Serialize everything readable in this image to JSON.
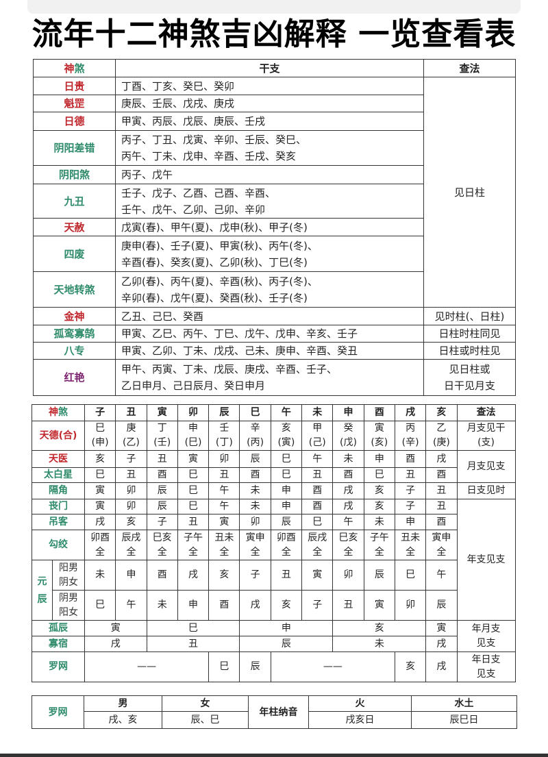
{
  "title": "流年十二神煞吉凶解释 一览查看表",
  "colors": {
    "red": "#c0272d",
    "green": "#2e8b6a",
    "purple": "#7a1f6e"
  },
  "table1": {
    "header": {
      "shen": "神",
      "sha": "煞",
      "ganzhi": "干支",
      "method": "查法"
    },
    "rows": [
      {
        "name": "日贵",
        "color": "red",
        "lines": [
          "丁酉、丁亥、癸巳、癸卯"
        ]
      },
      {
        "name": "魁罡",
        "color": "red",
        "lines": [
          "庚辰、壬辰、戊戌、庚戌"
        ]
      },
      {
        "name": "日德",
        "color": "red",
        "lines": [
          "甲寅、丙辰、戊辰、庚辰、壬戌"
        ]
      },
      {
        "name": "阴阳差错",
        "color": "green",
        "lines": [
          "丙子、丁丑、戊寅、辛卯、壬辰、癸巳、",
          "丙午、丁未、戊申、辛酉、壬戌、癸亥"
        ]
      },
      {
        "name": "阴阳煞",
        "color": "green",
        "lines": [
          "丙子、戊午"
        ]
      },
      {
        "name": "九丑",
        "color": "green",
        "lines": [
          "壬子、戊子、乙酉、己酉、辛酉、",
          "壬午、戊午、乙卯、己卯、辛卯"
        ]
      },
      {
        "name": "天赦",
        "color": "red",
        "lines": [
          "戊寅(春)、甲午(夏)、戊申(秋)、甲子(冬)"
        ]
      },
      {
        "name": "四废",
        "color": "green",
        "lines": [
          "庚申(春)、壬子(夏)、甲寅(秋)、丙午(冬)、",
          "辛酉(春)、癸亥(夏)、乙卯(秋)、丁巳(冬)"
        ]
      },
      {
        "name": "天地转煞",
        "color": "green",
        "lines": [
          "乙卯(春)、丙午(夏)、辛酉(秋)、丙子(冬)、",
          "辛卯(春)、戊午(夏)、癸酉(秋)、壬子(冬)"
        ]
      },
      {
        "name": "金神",
        "color": "red",
        "lines": [
          "乙丑、己巳、癸酉"
        ]
      },
      {
        "name": "孤鸾寡鹄",
        "color": "green",
        "lines": [
          "甲寅、乙巳、丙午、丁巳、戊午、戊申、辛亥、壬子"
        ]
      },
      {
        "name": "八专",
        "color": "green",
        "lines": [
          "甲寅、乙卯、丁未、戊戌、己未、庚申、辛酉、癸丑"
        ]
      },
      {
        "name": "红艳",
        "color": "purple",
        "lines": [
          "甲午、丙寅、丁未、戊辰、庚戌、辛酉、壬子、",
          "乙日申月、己日辰月、癸日申月"
        ]
      }
    ],
    "methods": [
      {
        "lines": [
          "见日柱"
        ]
      },
      {
        "lines": [
          "见时柱(、日柱)"
        ]
      },
      {
        "lines": [
          "日柱时柱同见"
        ]
      },
      {
        "lines": [
          "日柱或时柱见"
        ]
      },
      {
        "lines": [
          "见日柱或",
          "日干见月支"
        ]
      }
    ]
  },
  "table2": {
    "header": {
      "shen": "神",
      "sha": "煞",
      "branches": [
        "子",
        "丑",
        "寅",
        "卯",
        "辰",
        "巳",
        "午",
        "未",
        "申",
        "酉",
        "戌",
        "亥"
      ],
      "method": "查法"
    },
    "rows": [
      {
        "name": "天德(合)",
        "color": "red",
        "cells": [
          [
            "巳",
            "(申)"
          ],
          [
            "庚",
            "(乙)"
          ],
          [
            "丁",
            "(壬)"
          ],
          [
            "申",
            "(巳)"
          ],
          [
            "壬",
            "(丁)"
          ],
          [
            "辛",
            "(丙)"
          ],
          [
            "亥",
            "(寅)"
          ],
          [
            "甲",
            "(己)"
          ],
          [
            "癸",
            "(戊)"
          ],
          [
            "寅",
            "(亥)"
          ],
          [
            "丙",
            "(辛)"
          ],
          [
            "乙",
            "(庚)"
          ]
        ]
      },
      {
        "name": "天医",
        "color": "red",
        "cells": [
          [
            "亥"
          ],
          [
            "子"
          ],
          [
            "丑"
          ],
          [
            "寅"
          ],
          [
            "卯"
          ],
          [
            "辰"
          ],
          [
            "巳"
          ],
          [
            "午"
          ],
          [
            "未"
          ],
          [
            "申"
          ],
          [
            "酉"
          ],
          [
            "戌"
          ]
        ]
      },
      {
        "name": "太白星",
        "color": "green",
        "cells": [
          [
            "巳"
          ],
          [
            "丑"
          ],
          [
            "酉"
          ],
          [
            "巳"
          ],
          [
            "丑"
          ],
          [
            "酉"
          ],
          [
            "巳"
          ],
          [
            "丑"
          ],
          [
            "酉"
          ],
          [
            "巳"
          ],
          [
            "丑"
          ],
          [
            "酉"
          ]
        ]
      },
      {
        "name": "隔角",
        "color": "green",
        "cells": [
          [
            "寅"
          ],
          [
            "卯"
          ],
          [
            "辰"
          ],
          [
            "巳"
          ],
          [
            "午"
          ],
          [
            "未"
          ],
          [
            "申"
          ],
          [
            "酉"
          ],
          [
            "戌"
          ],
          [
            "亥"
          ],
          [
            "子"
          ],
          [
            "丑"
          ]
        ]
      },
      {
        "name": "丧门",
        "color": "green",
        "cells": [
          [
            "寅"
          ],
          [
            "卯"
          ],
          [
            "辰"
          ],
          [
            "巳"
          ],
          [
            "午"
          ],
          [
            "未"
          ],
          [
            "申"
          ],
          [
            "酉"
          ],
          [
            "戌"
          ],
          [
            "亥"
          ],
          [
            "子"
          ],
          [
            "丑"
          ]
        ]
      },
      {
        "name": "吊客",
        "color": "green",
        "cells": [
          [
            "戌"
          ],
          [
            "亥"
          ],
          [
            "子"
          ],
          [
            "丑"
          ],
          [
            "寅"
          ],
          [
            "卯"
          ],
          [
            "辰"
          ],
          [
            "巳"
          ],
          [
            "午"
          ],
          [
            "未"
          ],
          [
            "申"
          ],
          [
            "酉"
          ]
        ]
      },
      {
        "name": "勾绞",
        "color": "green",
        "cells": [
          [
            "卯酉",
            "全"
          ],
          [
            "辰戌",
            "全"
          ],
          [
            "巳亥",
            "全"
          ],
          [
            "子午",
            "全"
          ],
          [
            "丑未",
            "全"
          ],
          [
            "寅申",
            "全"
          ],
          [
            "卯酉",
            "全"
          ],
          [
            "辰戌",
            "全"
          ],
          [
            "巳亥",
            "全"
          ],
          [
            "子午",
            "全"
          ],
          [
            "丑未",
            "全"
          ],
          [
            "寅申",
            "全"
          ]
        ]
      },
      {
        "name": "元辰",
        "color": "green",
        "sub": [
          "阳男",
          "阴女"
        ],
        "cells": [
          [
            "未"
          ],
          [
            "申"
          ],
          [
            "酉"
          ],
          [
            "戌"
          ],
          [
            "亥"
          ],
          [
            "子"
          ],
          [
            "丑"
          ],
          [
            "寅"
          ],
          [
            "卯"
          ],
          [
            "辰"
          ],
          [
            "巳"
          ],
          [
            "午"
          ]
        ]
      },
      {
        "name": "",
        "color": "green",
        "sub": [
          "阴男",
          "阳女"
        ],
        "cells": [
          [
            "巳"
          ],
          [
            "午"
          ],
          [
            "未"
          ],
          [
            "申"
          ],
          [
            "酉"
          ],
          [
            "戌"
          ],
          [
            "亥"
          ],
          [
            "子"
          ],
          [
            "丑"
          ],
          [
            "寅"
          ],
          [
            "卯"
          ],
          [
            "辰"
          ]
        ]
      },
      {
        "name": "孤辰",
        "color": "green",
        "cells": [
          [
            "寅"
          ],
          [
            "巳"
          ],
          [
            "申"
          ],
          [
            "亥"
          ],
          [
            "寅"
          ]
        ]
      },
      {
        "name": "寡宿",
        "color": "green",
        "cells": [
          [
            "戌"
          ],
          [
            "丑"
          ],
          [
            "辰"
          ],
          [
            "未"
          ],
          [
            "戌"
          ]
        ]
      },
      {
        "name": "罗网",
        "color": "green",
        "cells": [
          [
            "——"
          ],
          [
            "巳"
          ],
          [
            "辰"
          ],
          [
            "——"
          ],
          [
            "亥"
          ],
          [
            "戌"
          ]
        ]
      }
    ],
    "methods": [
      {
        "lines": [
          "月支见干",
          "(支)"
        ]
      },
      {
        "lines": [
          "月支见支"
        ]
      },
      {
        "lines": [
          "日支见时"
        ]
      },
      {
        "lines": [
          "年支见支"
        ]
      },
      {
        "lines": [
          "年月支",
          "见支"
        ]
      },
      {
        "lines": [
          "年日支",
          "见支"
        ]
      }
    ]
  },
  "table3": {
    "label": "罗网",
    "male": "男",
    "female": "女",
    "male_value": "戌、亥",
    "female_value": "辰、巳",
    "nayin": "年柱纳音",
    "fire": "火",
    "water_earth": "水土",
    "fire_value": "戌亥日",
    "water_earth_value": "辰巳日"
  }
}
